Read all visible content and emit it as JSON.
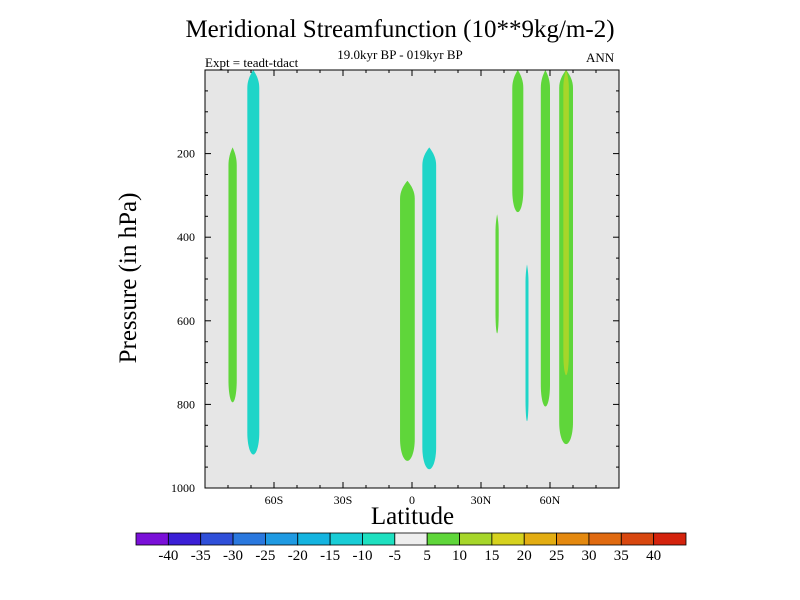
{
  "chart_data": {
    "type": "contour",
    "title": "Meridional Streamfunction (10**9kg/m-2)",
    "subtitle": "19.0kyr BP - 019kyr BP",
    "experiment": "Expt = teadt-tdact",
    "season": "ANN",
    "xlabel": "Latitude",
    "ylabel": "Pressure (in hPa)",
    "xlim": [
      -90,
      90
    ],
    "ylim": [
      1000,
      0
    ],
    "x_ticks": [
      {
        "value": -60,
        "label": "60S"
      },
      {
        "value": -30,
        "label": "30S"
      },
      {
        "value": 0,
        "label": "0"
      },
      {
        "value": 30,
        "label": "30N"
      },
      {
        "value": 60,
        "label": "60N"
      }
    ],
    "y_ticks": [
      {
        "value": 200,
        "label": "200"
      },
      {
        "value": 400,
        "label": "400"
      },
      {
        "value": 600,
        "label": "600"
      },
      {
        "value": 800,
        "label": "800"
      },
      {
        "value": 1000,
        "label": "1000"
      }
    ],
    "background_color": "#e6e6e6",
    "features": [
      {
        "name": "cell-70S-positive",
        "level_color": "#5fd63a",
        "lat_center": -78,
        "lat_halfwidth": 1.8,
        "p_top": 185,
        "p_bottom": 795
      },
      {
        "name": "cell-62S-negative",
        "level_color": "#1ed5c8",
        "lat_center": -69,
        "lat_halfwidth": 2.6,
        "p_top": 0,
        "p_bottom": 920
      },
      {
        "name": "cell-eq-positive",
        "level_color": "#5fd63a",
        "lat_center": -2,
        "lat_halfwidth": 3.2,
        "p_top": 265,
        "p_bottom": 935
      },
      {
        "name": "cell-eq-negative",
        "level_color": "#1ed5c8",
        "lat_center": 7.5,
        "lat_halfwidth": 3.0,
        "p_top": 185,
        "p_bottom": 955
      },
      {
        "name": "cell-35N-positive",
        "level_color": "#5fd63a",
        "lat_center": 37,
        "lat_halfwidth": 0.7,
        "p_top": 345,
        "p_bottom": 630
      },
      {
        "name": "cell-42N-negative",
        "level_color": "#1ed5c8",
        "lat_center": 50,
        "lat_halfwidth": 0.6,
        "p_top": 465,
        "p_bottom": 840
      },
      {
        "name": "cell-45N-positive",
        "level_color": "#5fd63a",
        "lat_center": 46,
        "lat_halfwidth": 2.4,
        "p_top": 0,
        "p_bottom": 340
      },
      {
        "name": "cell-55N-positive",
        "level_color": "#5fd63a",
        "lat_center": 58,
        "lat_halfwidth": 2.0,
        "p_top": 0,
        "p_bottom": 805
      },
      {
        "name": "cell-65N-positive",
        "level_color": "#5fd63a",
        "lat_center": 67,
        "lat_halfwidth": 3.0,
        "p_top": 0,
        "p_bottom": 895
      },
      {
        "name": "cell-65N-core",
        "level_color": "#a6d62a",
        "lat_center": 67,
        "lat_halfwidth": 1.2,
        "p_top": 0,
        "p_bottom": 730
      }
    ],
    "colorbar": {
      "levels": [
        "-40",
        "-35",
        "-30",
        "-25",
        "-20",
        "-15",
        "-10",
        "-5",
        "5",
        "10",
        "15",
        "20",
        "25",
        "30",
        "35",
        "40"
      ],
      "colors": [
        "#7a10d8",
        "#3b1fd6",
        "#2f4fd9",
        "#2a78de",
        "#1f9ae2",
        "#14b4e0",
        "#19cdd6",
        "#1ee0c0",
        "#eeeeee",
        "#5fd63a",
        "#a6d62a",
        "#d6d21e",
        "#e3ad12",
        "#e4890f",
        "#e06a10",
        "#d8470f",
        "#d4230d"
      ]
    }
  }
}
